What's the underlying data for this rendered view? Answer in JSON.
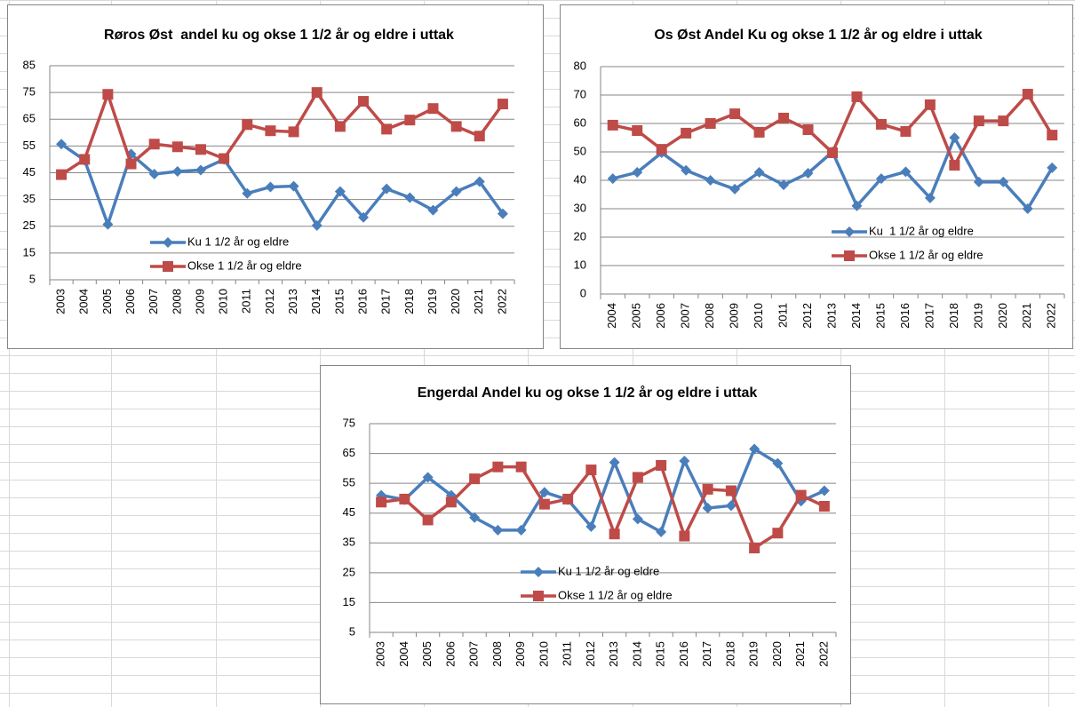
{
  "chart_data": [
    {
      "type": "line",
      "title": "Røros Øst  andel ku og okse 1 1/2 år og eldre i uttak",
      "categories": [
        "2003",
        "2004",
        "2005",
        "2006",
        "2007",
        "2008",
        "2009",
        "2010",
        "2011",
        "2012",
        "2013",
        "2014",
        "2015",
        "2016",
        "2017",
        "2018",
        "2019",
        "2020",
        "2021",
        "2022"
      ],
      "series": [
        {
          "name": "Ku 1 1/2 år og eldre",
          "color": "#4a7ebb",
          "marker": "diamond",
          "values": [
            55.7,
            49.7,
            25.7,
            52,
            44.5,
            45.5,
            46,
            50,
            37.3,
            39.7,
            40,
            25.3,
            38,
            28.3,
            39,
            35.7,
            31,
            38,
            41.7,
            29.7
          ]
        },
        {
          "name": "Okse 1 1/2 år og eldre",
          "color": "#be4b48",
          "marker": "square",
          "values": [
            44.3,
            50,
            74.3,
            48.3,
            55.7,
            54.7,
            53.7,
            50.3,
            63,
            60.7,
            60.3,
            75,
            62.3,
            71.7,
            61.3,
            64.7,
            69,
            62.3,
            58.7,
            70.7
          ]
        }
      ],
      "ylim": [
        5,
        85
      ],
      "yticks": [
        5,
        15,
        25,
        35,
        45,
        55,
        65,
        75,
        85
      ],
      "grid": true
    },
    {
      "type": "line",
      "title": "Os Øst Andel Ku og okse 1 1/2 år og eldre i uttak",
      "categories": [
        "2004",
        "2005",
        "2006",
        "2007",
        "2008",
        "2009",
        "2010",
        "2011",
        "2012",
        "2013",
        "2014",
        "2015",
        "2016",
        "2017",
        "2018",
        "2019",
        "2020",
        "2021",
        "2022"
      ],
      "series": [
        {
          "name": "Ku  1 1/2 år og eldre",
          "color": "#4a7ebb",
          "marker": "diamond",
          "values": [
            40.6,
            42.8,
            49.7,
            43.5,
            40,
            36.9,
            42.8,
            38.4,
            42.5,
            50,
            31,
            40.6,
            43,
            33.8,
            55,
            39.4,
            39.4,
            30,
            44.4
          ]
        },
        {
          "name": "Okse 1 1/2 år og eldre",
          "color": "#be4b48",
          "marker": "square",
          "values": [
            59.4,
            57.5,
            50.9,
            56.6,
            60,
            63.4,
            56.9,
            61.9,
            57.8,
            49.7,
            69.4,
            59.7,
            57.2,
            66.6,
            45.3,
            60.9,
            60.9,
            70.3,
            55.9
          ]
        }
      ],
      "ylim": [
        0,
        80
      ],
      "yticks": [
        0,
        10,
        20,
        30,
        40,
        50,
        60,
        70,
        80
      ],
      "grid": true
    },
    {
      "type": "line",
      "title": "Engerdal Andel ku og okse 1 1/2 år og eldre i uttak",
      "categories": [
        "2003",
        "2004",
        "2005",
        "2006",
        "2007",
        "2008",
        "2009",
        "2010",
        "2011",
        "2012",
        "2013",
        "2014",
        "2015",
        "2016",
        "2017",
        "2018",
        "2019",
        "2020",
        "2021",
        "2022"
      ],
      "series": [
        {
          "name": "Ku 1 1/2 år og eldre",
          "color": "#4a7ebb",
          "marker": "diamond",
          "values": [
            51,
            49.5,
            57,
            51,
            43.5,
            39.3,
            39.3,
            52,
            49.5,
            40.5,
            62,
            43,
            38.7,
            62.5,
            46.7,
            47.5,
            66.5,
            61.7,
            49,
            52.5
          ]
        },
        {
          "name": "Okse 1 1/2 år og eldre",
          "color": "#be4b48",
          "marker": "square",
          "values": [
            48.7,
            49.7,
            42.7,
            48.7,
            56.5,
            60.5,
            60.5,
            48,
            49.7,
            59.5,
            38,
            57,
            61,
            37.3,
            53,
            52.5,
            33.3,
            38.3,
            51,
            47.3
          ]
        }
      ],
      "ylim": [
        5,
        75
      ],
      "yticks": [
        5,
        15,
        25,
        35,
        45,
        55,
        65,
        75
      ],
      "grid": true
    }
  ]
}
